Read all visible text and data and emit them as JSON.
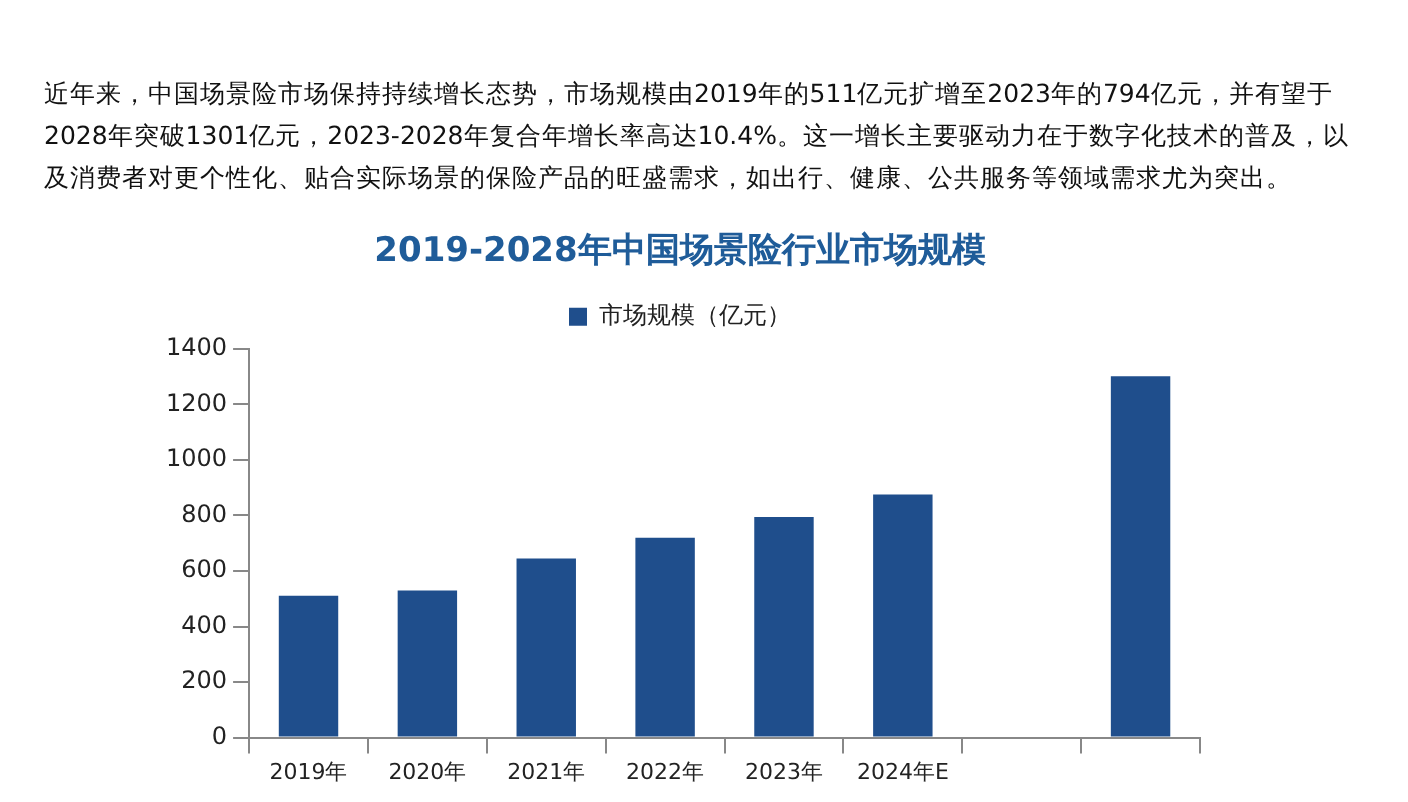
{
  "chart_data": {
    "type": "bar",
    "title": "2019-2028年中国场景险行业市场规模",
    "annotations": [
      "近年来，中国场景险市场保持持续增长态势，市场规模由2019年的511亿元扩增至2023年的794亿元，并有望于2028年突破1301亿元，2023-2028年复合年增长率高达10.4%。这一增长主要驱动力在于数字化技术的普及，以及消费者对更个性化、贴合实际场景的保险产品的旺盛需求，如出行、健康、公共服务等领域需求尤为突出。"
    ],
    "categories": [
      "2019年",
      "2020年",
      "2021年",
      "2022年",
      "2023年",
      "2024年E",
      null,
      null
    ],
    "series": [
      {
        "name": "市场规模（亿元）",
        "color": "#1f4e8c",
        "values": [
          511,
          530,
          645,
          720,
          794,
          875,
          null,
          1301
        ]
      }
    ],
    "ylim": [
      0,
      1400
    ],
    "yticks": [
      0,
      200,
      400,
      600,
      800,
      1000,
      1200,
      1400
    ],
    "grid": false,
    "legend": "top"
  }
}
